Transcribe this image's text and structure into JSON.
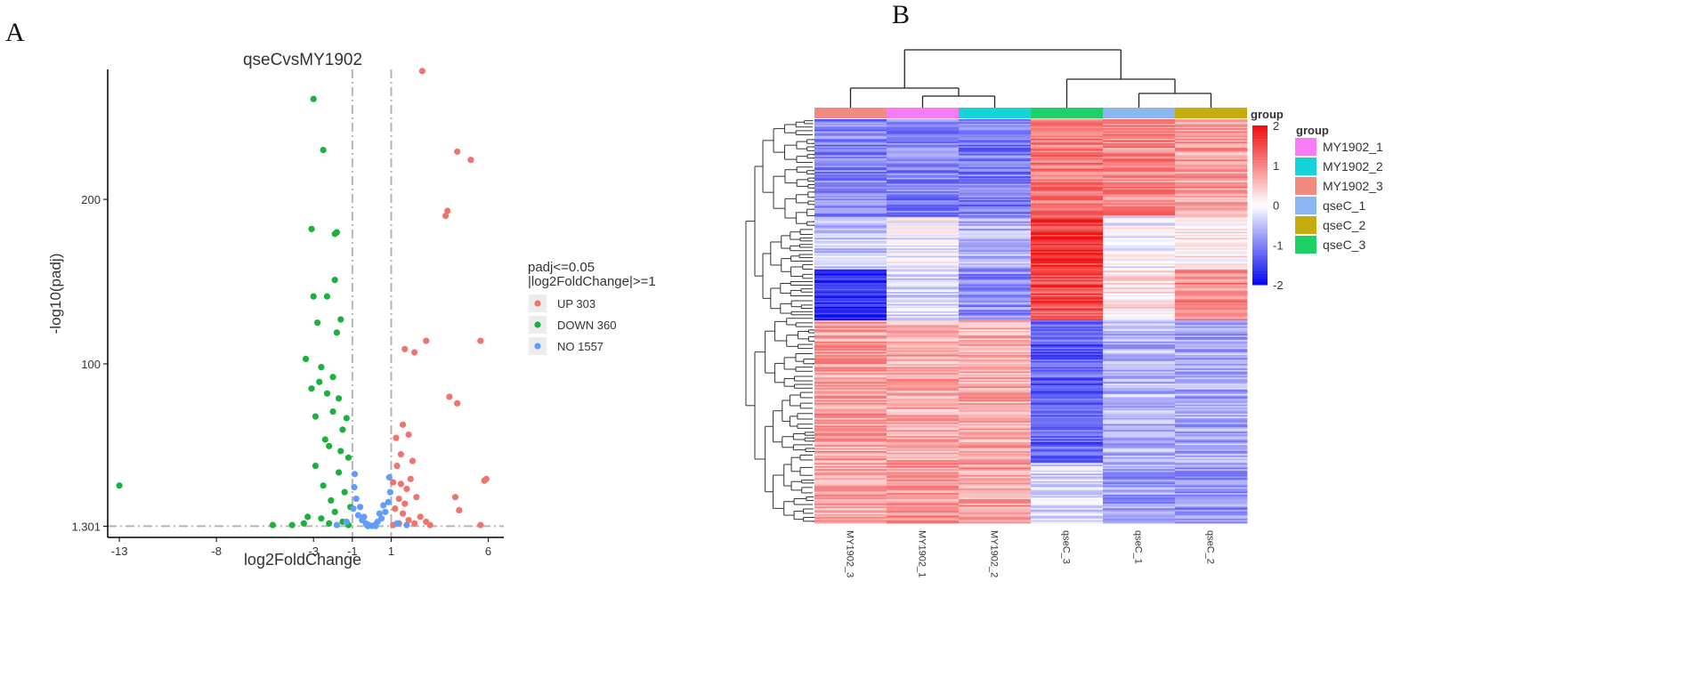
{
  "panels": {
    "a": "A",
    "b": "B"
  },
  "chart_data": [
    {
      "type": "scatter",
      "title": "qseCvsMY1902",
      "xlabel": "log2FoldChange",
      "ylabel": "-log10(padj)",
      "xlim": [
        -13.6,
        6.8
      ],
      "ylim": [
        -5.5,
        279
      ],
      "xticks": [
        -13,
        -8,
        -3,
        -1,
        1,
        6
      ],
      "xtick_labels": [
        "-13",
        "-8",
        "-3",
        "-1",
        "1",
        "6"
      ],
      "yticks": [
        1.301,
        100,
        200
      ],
      "ytick_labels": [
        "1.301",
        "100",
        "200"
      ],
      "vlines": [
        -1,
        1
      ],
      "hline": 1.301,
      "legend": {
        "title_lines": [
          "padj<=0.05",
          "|log2FoldChange|>=1"
        ],
        "entries": [
          {
            "label": "UP 303",
            "color": "#f0746e"
          },
          {
            "label": "DOWN 360",
            "color": "#1ab13f"
          },
          {
            "label": "NO 1557",
            "color": "#619cff"
          }
        ]
      },
      "series": [
        {
          "name": "UP",
          "color": "#f0746e",
          "n_total": 303,
          "points": [
            [
              2.6,
              278
            ],
            [
              4.4,
              229
            ],
            [
              5.1,
              224
            ],
            [
              3.9,
              193
            ],
            [
              3.8,
              190
            ],
            [
              1.7,
              109
            ],
            [
              2.2,
              107
            ],
            [
              2.8,
              114
            ],
            [
              5.6,
              114
            ],
            [
              4.0,
              80
            ],
            [
              4.4,
              76
            ],
            [
              5.8,
              29
            ],
            [
              5.9,
              30
            ],
            [
              4.3,
              19
            ],
            [
              5.6,
              2
            ],
            [
              4.5,
              11
            ],
            [
              3.0,
              2
            ],
            [
              2.8,
              4
            ],
            [
              2.5,
              7
            ],
            [
              2.3,
              19
            ],
            [
              1.6,
              63
            ],
            [
              1.9,
              57
            ],
            [
              1.5,
              45
            ],
            [
              1.3,
              38
            ],
            [
              2.0,
              30
            ],
            [
              1.8,
              24
            ],
            [
              1.4,
              18
            ],
            [
              1.2,
              12
            ],
            [
              1.6,
              9
            ],
            [
              1.9,
              5
            ],
            [
              2.2,
              3
            ],
            [
              1.1,
              2
            ],
            [
              1.4,
              3
            ],
            [
              1.7,
              15
            ],
            [
              2.1,
              41
            ],
            [
              1.25,
              55
            ],
            [
              1.1,
              28
            ],
            [
              1.5,
              27
            ]
          ]
        },
        {
          "name": "DOWN",
          "color": "#1ab13f",
          "n_total": 360,
          "points": [
            [
              -3.0,
              261
            ],
            [
              -2.5,
              230
            ],
            [
              -3.1,
              182
            ],
            [
              -1.8,
              180
            ],
            [
              -1.9,
              179
            ],
            [
              -1.9,
              151
            ],
            [
              -2.3,
              141
            ],
            [
              -3.0,
              141
            ],
            [
              -1.6,
              127
            ],
            [
              -2.8,
              125
            ],
            [
              -1.8,
              119
            ],
            [
              -3.4,
              103
            ],
            [
              -2.6,
              98
            ],
            [
              -2.0,
              92
            ],
            [
              -2.7,
              89
            ],
            [
              -3.1,
              85
            ],
            [
              -2.3,
              82
            ],
            [
              -1.7,
              79
            ],
            [
              -2.0,
              71
            ],
            [
              -2.9,
              68
            ],
            [
              -1.3,
              67
            ],
            [
              -1.5,
              60
            ],
            [
              -2.4,
              54
            ],
            [
              -2.2,
              50
            ],
            [
              -1.6,
              47
            ],
            [
              -1.2,
              43
            ],
            [
              -2.9,
              38
            ],
            [
              -1.7,
              34
            ],
            [
              -2.5,
              26
            ],
            [
              -1.4,
              22
            ],
            [
              -2.1,
              17
            ],
            [
              -1.1,
              13
            ],
            [
              -1.9,
              10
            ],
            [
              -2.6,
              6
            ],
            [
              -1.5,
              4
            ],
            [
              -1.2,
              2
            ],
            [
              -2.2,
              3
            ],
            [
              -13.0,
              26
            ],
            [
              -5.1,
              2
            ],
            [
              -4.1,
              2
            ],
            [
              -3.5,
              3
            ],
            [
              -3.3,
              7
            ]
          ]
        },
        {
          "name": "NO",
          "color": "#619cff",
          "n_total": 1557,
          "points": [
            [
              -0.9,
              25
            ],
            [
              -0.8,
              18
            ],
            [
              -0.95,
              12
            ],
            [
              -0.7,
              8
            ],
            [
              -0.5,
              5
            ],
            [
              -0.3,
              3
            ],
            [
              -0.15,
              2
            ],
            [
              0.0,
              1.5
            ],
            [
              0.15,
              2
            ],
            [
              0.3,
              4
            ],
            [
              0.5,
              6
            ],
            [
              0.7,
              10
            ],
            [
              0.85,
              16
            ],
            [
              0.95,
              22
            ],
            [
              0.9,
              31
            ],
            [
              -0.88,
              33
            ],
            [
              -0.6,
              13
            ],
            [
              0.6,
              14
            ],
            [
              0.4,
              9
            ],
            [
              -0.4,
              7
            ],
            [
              1.3,
              3
            ],
            [
              1.8,
              2
            ],
            [
              -1.3,
              4
            ],
            [
              -1.8,
              2
            ],
            [
              -0.2,
              1.4
            ],
            [
              0.2,
              1.4
            ]
          ]
        }
      ]
    },
    {
      "type": "heatmap",
      "columns": [
        "MY1902_3",
        "MY1902_1",
        "MY1902_2",
        "qseC_3",
        "qseC_1",
        "qseC_2"
      ],
      "column_groups": [
        "MY1902_3",
        "MY1902_1",
        "MY1902_2",
        "qseC_3",
        "qseC_1",
        "qseC_2"
      ],
      "color_scale": {
        "min": -2,
        "max": 2,
        "low": "#0b0bf0",
        "mid": "#ffffff",
        "high": "#f01010",
        "ticks": [
          "2",
          "1",
          "0",
          "-1",
          "-2"
        ],
        "title": "group"
      },
      "group_legend": {
        "title": "group",
        "entries": [
          {
            "label": "MY1902_1",
            "color": "#f77cf5"
          },
          {
            "label": "MY1902_2",
            "color": "#16d3d9"
          },
          {
            "label": "MY1902_3",
            "color": "#f28a80"
          },
          {
            "label": "qseC_1",
            "color": "#8cb6f2"
          },
          {
            "label": "qseC_2",
            "color": "#c6ad0f"
          },
          {
            "label": "qseC_3",
            "color": "#1fcf68"
          }
        ]
      },
      "row_blocks": [
        {
          "rows": 130,
          "values": [
            -1.0,
            -1.0,
            -1.1,
            1.1,
            1.0,
            0.8
          ]
        },
        {
          "rows": 70,
          "values": [
            -0.5,
            -0.1,
            -0.6,
            1.7,
            -0.1,
            0.2
          ]
        },
        {
          "rows": 68,
          "values": [
            -1.7,
            -0.3,
            -0.9,
            1.5,
            0.2,
            0.9
          ]
        },
        {
          "rows": 190,
          "values": [
            0.8,
            0.7,
            0.7,
            -1.3,
            -0.6,
            -0.7
          ]
        },
        {
          "rows": 80,
          "values": [
            0.7,
            0.9,
            0.8,
            -0.3,
            -0.8,
            -0.9
          ]
        }
      ]
    }
  ]
}
